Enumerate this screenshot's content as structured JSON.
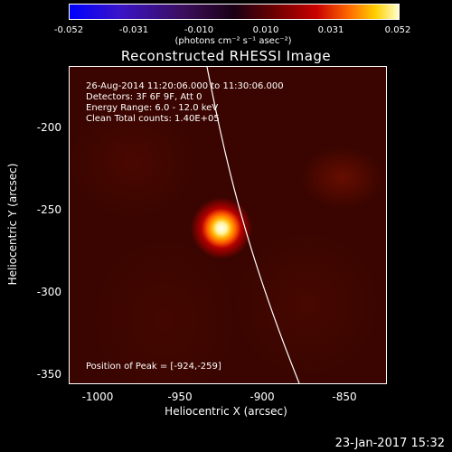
{
  "colorbar": {
    "ticks": [
      "-0.052",
      "-0.031",
      "-0.010",
      "0.010",
      "0.031",
      "0.052"
    ],
    "unit": "(photons cm⁻² s⁻¹ asec⁻²)"
  },
  "title": "Reconstructed RHESSI Image",
  "info": {
    "time": "26-Aug-2014 11:20:06.000 to 11:30:06.000",
    "detectors": "Detectors: 3F 6F 9F, Att 0",
    "energy": "Energy Range: 6.0 - 12.0 keV",
    "method": "Clean     Total counts: 1.40E+05",
    "peak": "Position of Peak = [-924,-259]"
  },
  "axes": {
    "xlabel": "Heliocentric X (arcsec)",
    "ylabel": "Heliocentric Y (arcsec)",
    "xticks": [
      "-1000",
      "-950",
      "-900",
      "-850"
    ],
    "yticks": [
      "-200",
      "-250",
      "-300",
      "-350"
    ]
  },
  "timestamp": "23-Jan-2017 15:32"
}
